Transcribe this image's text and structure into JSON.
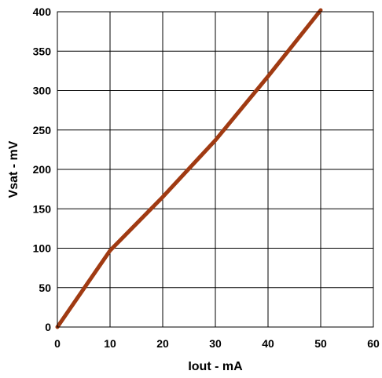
{
  "chart_data": {
    "type": "line",
    "title": "",
    "xlabel": "Iout - mA",
    "ylabel": "Vsat - mV",
    "xlim": [
      0,
      60
    ],
    "ylim": [
      0,
      400
    ],
    "xticks": [
      0,
      10,
      20,
      30,
      40,
      50,
      60
    ],
    "yticks": [
      0,
      50,
      100,
      150,
      200,
      250,
      300,
      350,
      400
    ],
    "grid": true,
    "colors": {
      "line": "#a03a12",
      "grid": "#000000"
    },
    "series": [
      {
        "x": [
          0,
          10,
          20,
          30,
          40,
          50
        ],
        "y": [
          0,
          97,
          165,
          237,
          318,
          402
        ]
      }
    ]
  }
}
